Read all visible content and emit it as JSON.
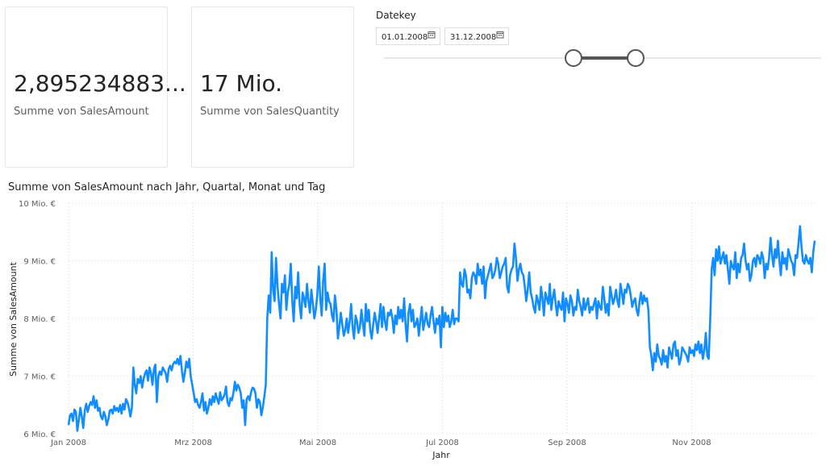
{
  "cards": [
    {
      "value": "2,895234883...",
      "label": "Summe von SalesAmount"
    },
    {
      "value": "17 Mio.",
      "label": "Summe von SalesQuantity"
    }
  ],
  "slicer": {
    "title": "Datekey",
    "from": "01.01.2008",
    "to": "31.12.2008",
    "range_fraction": [
      0.43,
      0.57
    ],
    "icon": "calendar-icon"
  },
  "chart_title": "Summe von SalesAmount nach Jahr, Quartal, Monat und Tag",
  "chart_data": {
    "type": "line",
    "xlabel": "Jahr",
    "ylabel": "Summe von SalesAmount",
    "y_unit": "Mio. €",
    "ylim": [
      6,
      10
    ],
    "yticks": [
      6,
      7,
      8,
      9,
      10
    ],
    "ytick_labels": [
      "6 Mio. €",
      "7 Mio. €",
      "8 Mio. €",
      "9 Mio. €",
      "10 Mio. €"
    ],
    "xticks": [
      {
        "label": "Jan 2008",
        "month": 0
      },
      {
        "label": "Mrz 2008",
        "month": 2
      },
      {
        "label": "Mai 2008",
        "month": 4
      },
      {
        "label": "Jul 2008",
        "month": 6
      },
      {
        "label": "Sep 2008",
        "month": 8
      },
      {
        "label": "Nov 2008",
        "month": 10
      }
    ],
    "x_range_months": [
      0,
      12
    ],
    "grid": true,
    "series_color": "#118DFF",
    "series": [
      {
        "x_start": "2008-01-01",
        "x_step_days": 1,
        "values": [
          6.15,
          6.32,
          6.35,
          6.22,
          6.42,
          6.38,
          6.05,
          6.25,
          6.45,
          6.3,
          6.1,
          6.4,
          6.52,
          6.38,
          6.48,
          6.55,
          6.5,
          6.65,
          6.45,
          6.58,
          6.4,
          6.45,
          6.3,
          6.25,
          6.38,
          6.3,
          6.15,
          6.25,
          6.4,
          6.42,
          6.35,
          6.48,
          6.4,
          6.45,
          6.38,
          6.5,
          6.35,
          6.52,
          6.42,
          6.6,
          6.55,
          6.45,
          6.3,
          6.45,
          7.15,
          6.85,
          6.7,
          6.95,
          6.88,
          7.0,
          6.8,
          6.95,
          7.05,
          7.1,
          6.92,
          7.15,
          7.05,
          6.85,
          7.12,
          7.2,
          6.55,
          7.0,
          7.08,
          7.02,
          7.15,
          7.1,
          7.05,
          6.9,
          7.12,
          7.18,
          7.1,
          7.2,
          7.25,
          7.22,
          7.3,
          7.2,
          7.35,
          7.1,
          6.9,
          7.05,
          7.25,
          7.15,
          7.3,
          7.0,
          6.85,
          6.7,
          6.55,
          6.6,
          6.5,
          6.45,
          6.55,
          6.7,
          6.4,
          6.55,
          6.35,
          6.45,
          6.6,
          6.5,
          6.65,
          6.55,
          6.7,
          6.6,
          6.52,
          6.72,
          6.58,
          6.62,
          6.68,
          6.82,
          6.55,
          6.48,
          6.62,
          6.58,
          6.7,
          6.9,
          6.75,
          6.85,
          6.8,
          6.7,
          6.45,
          6.58,
          6.15,
          6.6,
          6.65,
          6.58,
          6.72,
          6.8,
          6.78,
          6.7,
          6.45,
          6.6,
          6.55,
          6.32,
          6.45,
          6.65,
          6.85,
          8.0,
          8.4,
          8.1,
          9.15,
          8.5,
          8.3,
          9.05,
          8.55,
          8.25,
          8.0,
          8.6,
          8.45,
          8.75,
          8.15,
          8.45,
          8.6,
          8.95,
          8.3,
          7.95,
          8.55,
          8.35,
          8.8,
          8.25,
          8.0,
          8.45,
          8.35,
          8.2,
          8.6,
          8.3,
          8.1,
          8.5,
          8.25,
          8.0,
          8.15,
          8.4,
          8.9,
          8.35,
          8.05,
          8.65,
          8.95,
          8.15,
          8.45,
          8.3,
          8.25,
          8.05,
          7.95,
          8.4,
          8.15,
          7.65,
          7.85,
          8.1,
          7.9,
          7.7,
          7.8,
          8.0,
          7.75,
          7.95,
          8.25,
          7.85,
          7.65,
          8.05,
          7.95,
          7.75,
          7.85,
          8.15,
          7.9,
          7.7,
          8.25,
          7.95,
          8.15,
          7.8,
          7.65,
          7.9,
          8.1,
          7.95,
          7.75,
          8.0,
          8.25,
          7.85,
          8.2,
          7.95,
          7.8,
          8.1,
          8.05,
          8.15,
          8.0,
          7.75,
          8.05,
          7.9,
          8.2,
          8.0,
          8.15,
          7.95,
          8.35,
          7.9,
          7.6,
          8.1,
          8.25,
          7.95,
          8.15,
          7.85,
          7.9,
          8.0,
          7.7,
          7.95,
          8.2,
          7.8,
          7.95,
          8.1,
          7.9,
          7.85,
          8.05,
          8.2,
          7.95,
          7.75,
          8.0,
          7.9,
          8.05,
          7.5,
          8.2,
          7.85,
          8.1,
          7.95,
          8.05,
          7.85,
          7.95,
          8.15,
          7.9,
          8.0,
          8.0,
          7.95,
          8.8,
          8.6,
          8.55,
          8.85,
          8.75,
          8.45,
          8.5,
          8.35,
          8.7,
          8.8,
          8.75,
          8.6,
          8.95,
          8.75,
          8.85,
          8.6,
          8.9,
          8.35,
          8.65,
          8.75,
          8.85,
          8.95,
          8.7,
          8.75,
          8.85,
          9.05,
          8.95,
          8.7,
          8.8,
          8.9,
          8.95,
          9.05,
          8.55,
          8.45,
          8.75,
          8.85,
          8.9,
          9.3,
          9.05,
          8.65,
          8.85,
          8.95,
          8.8,
          8.75,
          8.55,
          8.3,
          8.5,
          8.8,
          8.45,
          8.35,
          8.2,
          8.1,
          8.4,
          8.3,
          8.15,
          8.55,
          8.35,
          8.05,
          8.45,
          8.35,
          8.25,
          8.6,
          8.15,
          8.35,
          8.5,
          8.25,
          8.05,
          8.3,
          8.2,
          8.15,
          8.45,
          7.95,
          8.35,
          8.25,
          8.1,
          8.4,
          8.3,
          8.05,
          8.2,
          8.15,
          8.5,
          8.3,
          8.2,
          8.05,
          8.35,
          8.15,
          8.25,
          8.35,
          8.1,
          8.2,
          8.15,
          8.25,
          8.35,
          8.0,
          8.3,
          8.2,
          8.15,
          8.55,
          8.35,
          8.1,
          8.25,
          8.05,
          8.55,
          8.4,
          8.25,
          8.35,
          8.5,
          8.3,
          8.2,
          8.6,
          8.45,
          8.25,
          8.5,
          8.45,
          8.6,
          8.55,
          8.4,
          8.2,
          8.3,
          8.35,
          8.15,
          8.05,
          8.3,
          8.45,
          8.25,
          8.4,
          8.3,
          8.35,
          8.15,
          7.5,
          7.35,
          7.1,
          7.4,
          7.25,
          7.55,
          7.35,
          7.3,
          7.2,
          7.45,
          7.25,
          7.35,
          7.15,
          7.5,
          7.4,
          7.3,
          7.55,
          7.6,
          7.35,
          7.45,
          7.2,
          7.3,
          7.5,
          7.45,
          7.4,
          7.35,
          7.25,
          7.5,
          7.4,
          7.45,
          7.35,
          7.55,
          7.45,
          7.6,
          7.4,
          7.55,
          7.3,
          7.45,
          7.75,
          7.35,
          7.3,
          8.0,
          8.85,
          9.05,
          8.75,
          9.2,
          9.0,
          9.25,
          8.95,
          9.05,
          9.15,
          8.95,
          9.1,
          8.85,
          8.6,
          9.0,
          8.9,
          8.85,
          9.15,
          8.7,
          8.95,
          8.8,
          9.05,
          9.1,
          9.3,
          9.0,
          8.85,
          8.95,
          8.65,
          8.75,
          9.0,
          9.05,
          8.9,
          9.1,
          9.05,
          8.95,
          9.15,
          9.05,
          8.7,
          8.95,
          8.85,
          9.05,
          9.4,
          9.1,
          8.9,
          9.2,
          9.05,
          9.35,
          9.0,
          8.75,
          9.15,
          8.95,
          9.05,
          8.85,
          9.2,
          9.1,
          9.0,
          8.95,
          8.75,
          9.1,
          9.05,
          9.3,
          9.6,
          9.25,
          9.0,
          8.95,
          9.1,
          9.0,
          8.95,
          9.05,
          8.8,
          9.15,
          9.35
        ]
      }
    ]
  }
}
